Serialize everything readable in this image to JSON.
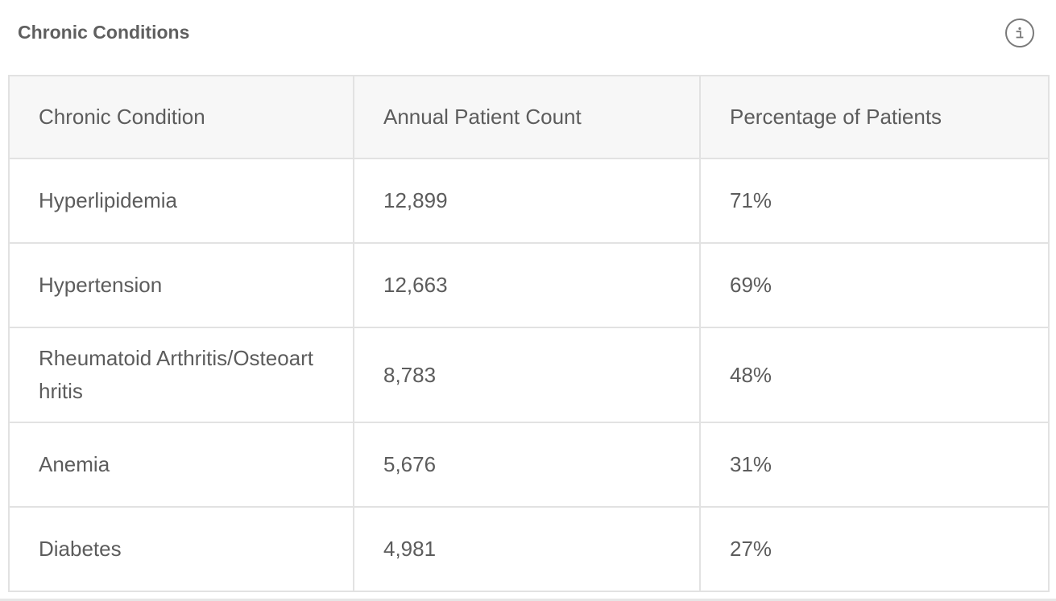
{
  "card": {
    "title": "Chronic Conditions",
    "info_icon": "info-circle-icon"
  },
  "table": {
    "headers": [
      "Chronic Condition",
      "Annual Patient Count",
      "Percentage of Patients"
    ],
    "rows": [
      {
        "condition": "Hyperlipidemia",
        "count": "12,899",
        "percent": "71%"
      },
      {
        "condition": "Hypertension",
        "count": "12,663",
        "percent": "69%"
      },
      {
        "condition": "Rheumatoid Arthritis/Osteoarthritis",
        "count": "8,783",
        "percent": "48%"
      },
      {
        "condition": "Anemia",
        "count": "5,676",
        "percent": "31%"
      },
      {
        "condition": "Diabetes",
        "count": "4,981",
        "percent": "27%"
      }
    ]
  },
  "colors": {
    "header_bg": "#f7f7f7",
    "border": "#e2e2e2",
    "text": "#5c5c5c"
  }
}
